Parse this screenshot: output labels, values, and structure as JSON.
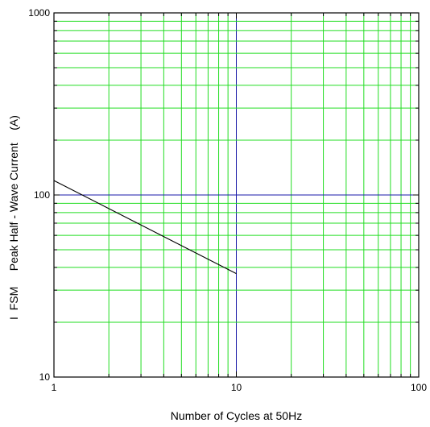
{
  "chart_data": {
    "type": "line",
    "title": "",
    "xlabel": "Number of Cycles at 50Hz",
    "ylabel": "I  FSM     Peak Half - Wave Current    (A)",
    "x_scale": "log",
    "y_scale": "log",
    "xlim": [
      1,
      100
    ],
    "ylim": [
      10,
      1000
    ],
    "x_tick_labels": [
      "1",
      "10",
      "100"
    ],
    "y_tick_labels": [
      "10",
      "100",
      "1000"
    ],
    "grid": true,
    "colors": {
      "grid_minor": "#22dd22",
      "grid_major": "#1a1aa8",
      "frame": "#000000",
      "series": "#000000"
    },
    "series": [
      {
        "x": [
          1,
          10
        ],
        "y": [
          120,
          37
        ]
      }
    ]
  }
}
